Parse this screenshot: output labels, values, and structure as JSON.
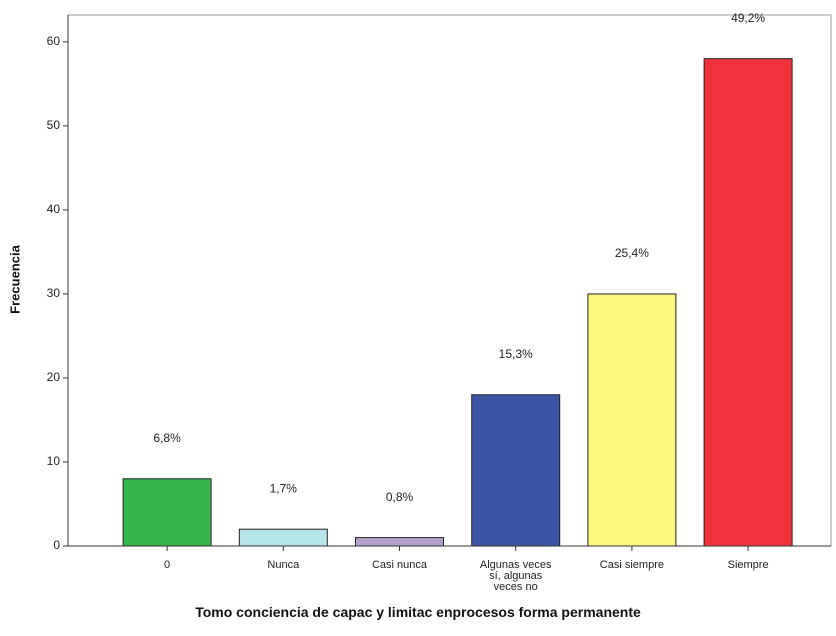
{
  "chart_data": {
    "type": "bar",
    "x_label": "Tomo conciencia de capac y limitac enprocesos forma permanente",
    "y_label": "Frecuencia",
    "categories": [
      "0",
      "Nunca",
      "Casi nunca",
      "Algunas veces sí, algunas veces no",
      "Casi siempre",
      "Siempre"
    ],
    "values": [
      8,
      2,
      1,
      18,
      30,
      58
    ],
    "percent_labels": [
      "6,8%",
      "1,7%",
      "0,8%",
      "15,3%",
      "25,4%",
      "49,2%"
    ],
    "colors": [
      "#36b34a",
      "#b5e4e9",
      "#b3a0cc",
      "#3a55a5",
      "#fbf77c",
      "#f2323a"
    ],
    "ylim": [
      0,
      63.2
    ],
    "yticks": [
      0,
      10,
      20,
      30,
      40,
      50,
      60
    ]
  }
}
